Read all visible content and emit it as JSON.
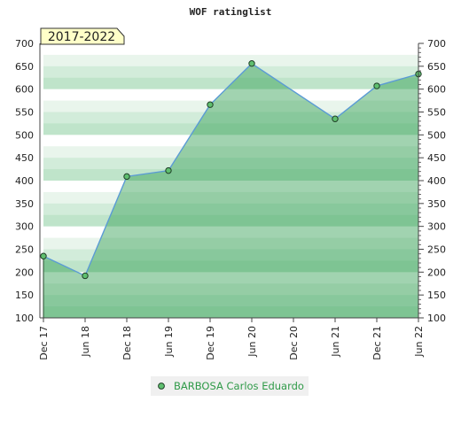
{
  "chart_data": {
    "type": "area",
    "title": "WOF ratinglist",
    "period_badge": "2017-2022",
    "x_ticks": [
      "Dec 17",
      "Jun 18",
      "Dec 18",
      "Jun 19",
      "Dec 19",
      "Jun 20",
      "Dec 20",
      "Jun 21",
      "Dec 21",
      "Jun 22"
    ],
    "ylim": [
      100,
      700
    ],
    "y_ticks": [
      100,
      150,
      200,
      250,
      300,
      350,
      400,
      450,
      500,
      550,
      600,
      650,
      700
    ],
    "y_ticks_right": [
      100,
      150,
      200,
      250,
      300,
      350,
      400,
      450,
      500,
      550,
      600,
      650,
      700
    ],
    "series": [
      {
        "name": "BARBOSA Carlos Eduardo",
        "x": [
          "Dec 17",
          "Jun 18",
          "Dec 18",
          "Jun 19",
          "Dec 19",
          "Jun 20",
          "Jun 21",
          "Dec 21",
          "Jun 22"
        ],
        "values": [
          235,
          192,
          409,
          422,
          566,
          656,
          535,
          607,
          633
        ]
      }
    ],
    "legend_position": "bottom-center",
    "colors": {
      "line": "#5b9bd5",
      "area": "#2e9e4f",
      "marker_fill": "#5fbf6f",
      "marker_stroke": "#1f3f27",
      "badge_fill": "#ffffc8",
      "badge_text": "#7a0000",
      "legend_text": "#2f9a48"
    }
  }
}
